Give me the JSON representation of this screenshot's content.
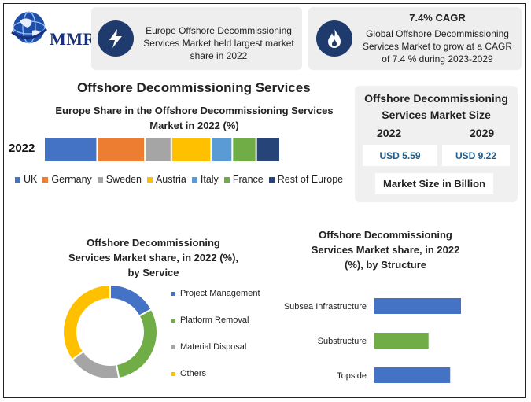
{
  "logo": {
    "text": "MMR"
  },
  "card_left": {
    "icon": "lightning-bolt-icon",
    "text": "Europe Offshore Decommissioning Services Market held largest market share in 2022"
  },
  "card_right": {
    "icon": "flame-icon",
    "headline": "7.4% CAGR",
    "text": "Global Offshore Decommissioning Services Market to grow at a CAGR of 7.4 % during 2023-2029"
  },
  "main_title": "Offshore Decommissioning Services",
  "market_size": {
    "title_line1": "Offshore Decommissioning",
    "title_line2": "Services Market Size",
    "year_a": "2022",
    "year_b": "2029",
    "value_a": "USD 5.59",
    "value_b": "USD 9.22",
    "footer": "Market Size in Billion"
  },
  "colors": {
    "blue": "#4472c4",
    "orange": "#ed7d31",
    "gray": "#a5a5a5",
    "gold": "#ffc000",
    "lightblue": "#5b9bd5",
    "green": "#70ad47",
    "navy": "#264478"
  },
  "chart_data": [
    {
      "type": "bar",
      "orientation": "horizontal-stacked",
      "title_line1": "Europe Share in the Offshore Decommissioning Services",
      "title_line2": "Market in 2022 (%)",
      "categories": [
        "2022"
      ],
      "series": [
        {
          "name": "UK",
          "values": [
            20
          ],
          "color": "#4472c4"
        },
        {
          "name": "Germany",
          "values": [
            18
          ],
          "color": "#ed7d31"
        },
        {
          "name": "Sweden",
          "values": [
            10
          ],
          "color": "#a5a5a5"
        },
        {
          "name": "Austria",
          "values": [
            15
          ],
          "color": "#ffc000"
        },
        {
          "name": "Italy",
          "values": [
            8
          ],
          "color": "#5b9bd5"
        },
        {
          "name": "France",
          "values": [
            9
          ],
          "color": "#70ad47"
        },
        {
          "name": "Rest of Europe",
          "values": [
            9
          ],
          "color": "#264478"
        }
      ],
      "legend": "bottom"
    },
    {
      "type": "pie",
      "variant": "donut",
      "title_line1": "Offshore Decommissioning",
      "title_line2": "Services Market  share, in 2022 (%),",
      "title_line3": "by Service",
      "slices": [
        {
          "label": "Project Management",
          "value": 17,
          "color": "#4472c4"
        },
        {
          "label": "Platform Removal",
          "value": 30,
          "color": "#70ad47"
        },
        {
          "label": "Material Disposal",
          "value": 18,
          "color": "#a5a5a5"
        },
        {
          "label": "Others",
          "value": 35,
          "color": "#ffc000"
        }
      ],
      "legend": "right"
    },
    {
      "type": "bar",
      "orientation": "horizontal",
      "title_line1": "Offshore Decommissioning",
      "title_line2": "Services Market  share, in 2022",
      "title_line3": "(%), by Structure",
      "categories": [
        "Subsea Infrastructure",
        "Substructure",
        "Topside"
      ],
      "values": [
        40,
        25,
        35
      ],
      "colors": [
        "#4472c4",
        "#70ad47",
        "#4472c4"
      ],
      "xlim": [
        0,
        40
      ]
    }
  ]
}
